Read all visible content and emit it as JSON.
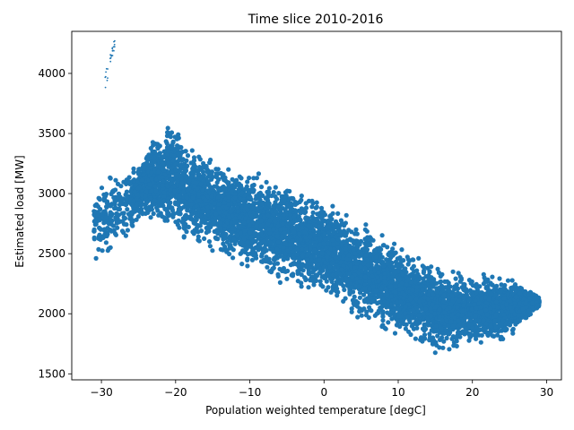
{
  "chart_data": {
    "type": "scatter",
    "title": "Time slice 2010-2016",
    "xlabel": "Population weighted temperature [degC]",
    "ylabel": "Estimated load [MW]",
    "xlim": [
      -34,
      32
    ],
    "ylim": [
      1450,
      4350
    ],
    "xticks": [
      -30,
      -20,
      -10,
      0,
      10,
      20,
      30
    ],
    "yticks": [
      1500,
      2000,
      2500,
      3000,
      3500,
      4000
    ],
    "xtick_labels": [
      "−30",
      "−20",
      "−10",
      "0",
      "10",
      "20",
      "30"
    ],
    "ytick_labels": [
      "1500",
      "2000",
      "2500",
      "3000",
      "3500",
      "4000"
    ],
    "grid": false,
    "marker_color": "#1f77b4",
    "series": [
      {
        "name": "",
        "density_profile": [
          {
            "x": -31,
            "low": 2400,
            "high": 3100
          },
          {
            "x": -28,
            "low": 2450,
            "high": 3200
          },
          {
            "x": -25,
            "low": 2750,
            "high": 3300
          },
          {
            "x": -22,
            "low": 2650,
            "high": 3600
          },
          {
            "x": -20,
            "low": 2600,
            "high": 3700
          },
          {
            "x": -18,
            "low": 2550,
            "high": 3450
          },
          {
            "x": -15,
            "low": 2450,
            "high": 3350
          },
          {
            "x": -10,
            "low": 2300,
            "high": 3250
          },
          {
            "x": -5,
            "low": 2200,
            "high": 3150
          },
          {
            "x": 0,
            "low": 2100,
            "high": 3000
          },
          {
            "x": 5,
            "low": 1900,
            "high": 2800
          },
          {
            "x": 10,
            "low": 1750,
            "high": 2650
          },
          {
            "x": 15,
            "low": 1650,
            "high": 2450
          },
          {
            "x": 20,
            "low": 1700,
            "high": 2350
          },
          {
            "x": 25,
            "low": 1750,
            "high": 2350
          },
          {
            "x": 29,
            "low": 2050,
            "high": 2150
          }
        ],
        "outlier_cluster": {
          "x": [
            -29.5,
            -28.2
          ],
          "y": [
            3930,
            4270
          ]
        }
      }
    ]
  }
}
